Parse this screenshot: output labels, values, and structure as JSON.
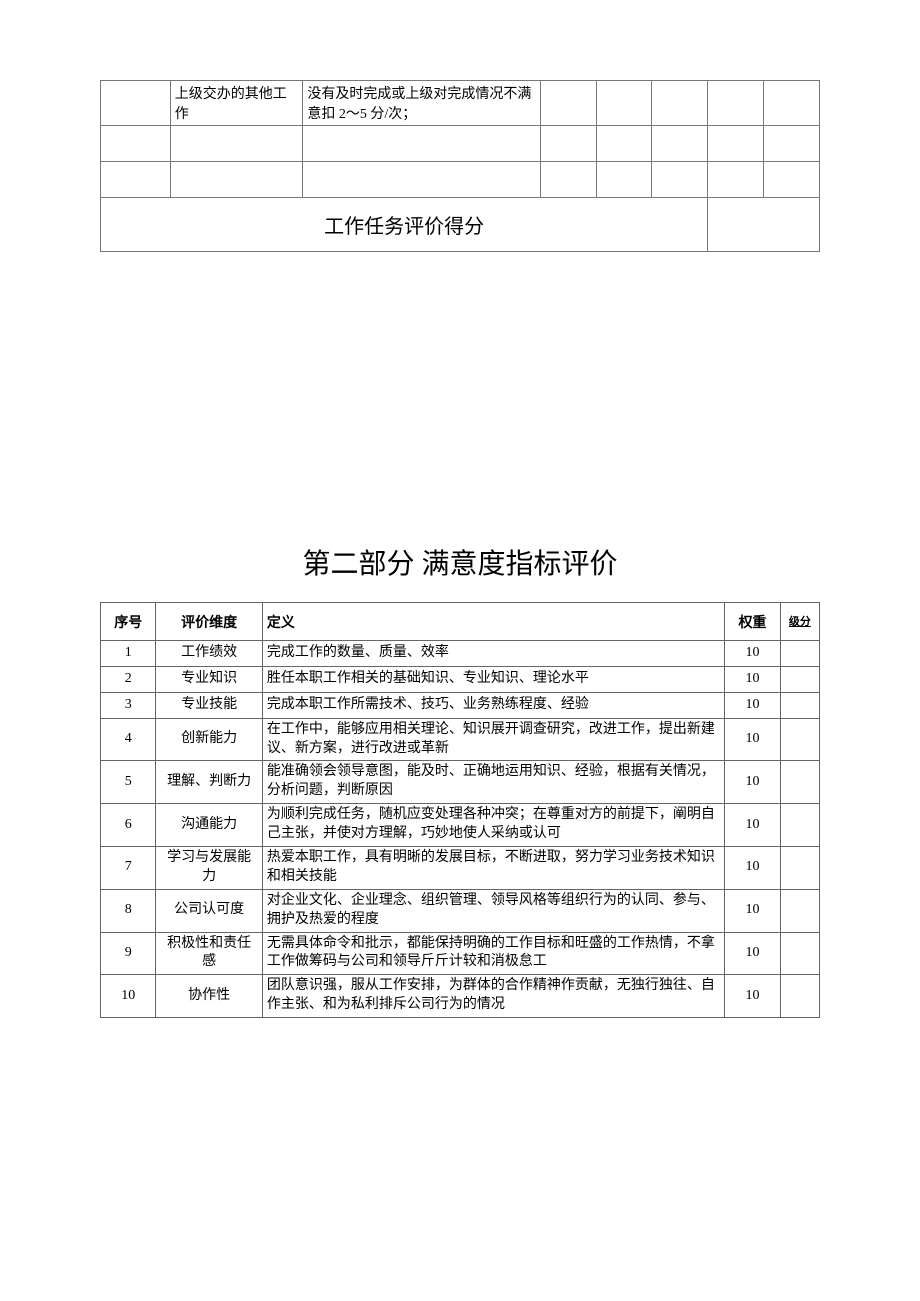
{
  "top_table": {
    "row_desc": "上级交办的其他工作",
    "row_crit": "没有及时完成或上级对完成情况不满意扣 2～5 分/次；",
    "score_label": "工作任务评价得分"
  },
  "section2_title": "第二部分 满意度指标评价",
  "eval_headers": {
    "seq": "序号",
    "dim": "评价维度",
    "def": "定义",
    "weight": "权重",
    "score": "级分"
  },
  "eval_rows": [
    {
      "seq": "1",
      "dim": "工作绩效",
      "def": "完成工作的数量、质量、效率",
      "weight": "10"
    },
    {
      "seq": "2",
      "dim": "专业知识",
      "def": "胜任本职工作相关的基础知识、专业知识、理论水平",
      "weight": "10"
    },
    {
      "seq": "3",
      "dim": "专业技能",
      "def": "完成本职工作所需技术、技巧、业务熟练程度、经验",
      "weight": "10"
    },
    {
      "seq": "4",
      "dim": "创新能力",
      "def": "在工作中，能够应用相关理论、知识展开调查研究，改进工作，提出新建议、新方案，进行改进或革新",
      "weight": "10"
    },
    {
      "seq": "5",
      "dim": "理解、判断力",
      "def": "能准确领会领导意图，能及时、正确地运用知识、经验，根据有关情况，分析问题，判断原因",
      "weight": "10"
    },
    {
      "seq": "6",
      "dim": "沟通能力",
      "def": "为顺利完成任务，随机应变处理各种冲突；在尊重对方的前提下，阐明自己主张，并使对方理解，巧妙地使人采纳或认可",
      "weight": "10"
    },
    {
      "seq": "7",
      "dim": "学习与发展能力",
      "def": "热爱本职工作，具有明晰的发展目标，不断进取，努力学习业务技术知识和相关技能",
      "weight": "10"
    },
    {
      "seq": "8",
      "dim": "公司认可度",
      "def": "对企业文化、企业理念、组织管理、领导风格等组织行为的认同、参与、拥护及热爱的程度",
      "weight": "10"
    },
    {
      "seq": "9",
      "dim": "积极性和责任感",
      "def": "无需具体命令和批示，都能保持明确的工作目标和旺盛的工作热情，不拿工作做筹码与公司和领导斤斤计较和消极怠工",
      "weight": "10"
    },
    {
      "seq": "10",
      "dim": "协作性",
      "def": "团队意识强，服从工作安排，为群体的合作精神作贡献，无独行独往、自作主张、和为私利排斥公司行为的情况",
      "weight": "10"
    }
  ]
}
